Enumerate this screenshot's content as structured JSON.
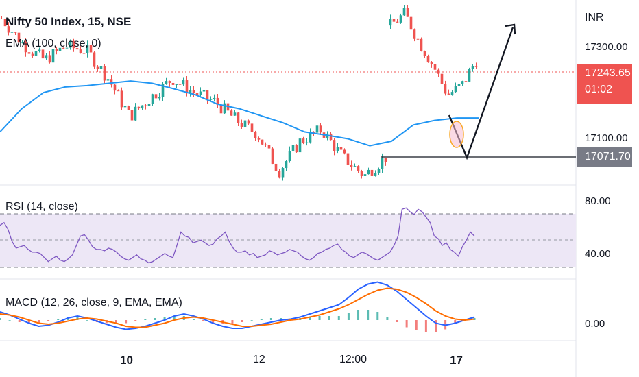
{
  "header": {
    "symbol": "Nifty 50 Index, 15, NSE",
    "ema_label": "EMA (100, close, 0)",
    "currency": "INR"
  },
  "colors": {
    "up": "#26a69a",
    "down": "#ef5350",
    "ema": "#2196f3",
    "rsi": "#7e57c2",
    "rsi_band": "#ede7f6",
    "macd": "#2962ff",
    "signal": "#ff6d00",
    "last_price_tag": "#ef5350",
    "level_tag": "#787b86"
  },
  "chart_data": [
    {
      "type": "candlestick",
      "title": "Nifty 50 Index, 15, NSE",
      "ylabel": "INR",
      "y_ticks": [
        "17300.00",
        "17100.00"
      ],
      "ylim": [
        17000,
        17400
      ],
      "last_price": "17243.65",
      "countdown": "01:02",
      "support_level": "17071.70",
      "x_ticks": [
        "10",
        "12",
        "12:00",
        "17"
      ],
      "ema": {
        "name": "EMA (100, close, 0)",
        "values": [
          17115,
          17165,
          17200,
          17212,
          17215,
          17220,
          17225,
          17220,
          17208,
          17195,
          17175,
          17165,
          17150,
          17135,
          17115,
          17108,
          17100,
          17085,
          17095,
          17130,
          17140,
          17145,
          17145
        ]
      },
      "close": [
        17360,
        17305,
        17270,
        17300,
        17290,
        17230,
        17148,
        17190,
        17230,
        17200,
        17180,
        17140,
        17110,
        17030,
        17095,
        17120,
        17060,
        17020,
        17060,
        17345,
        17370,
        17310,
        17258,
        17195,
        17215,
        17270
      ]
    },
    {
      "type": "line",
      "title": "RSI (14, close)",
      "y_ticks": [
        "80.00",
        "40.00"
      ],
      "ylim": [
        20,
        90
      ],
      "bands": [
        70,
        30
      ],
      "values": [
        60,
        62,
        57,
        48,
        43,
        44,
        45,
        42,
        40,
        40,
        39,
        36,
        33,
        35,
        37,
        34,
        33,
        35,
        38,
        45,
        52,
        53,
        49,
        44,
        42,
        42,
        41,
        43,
        42,
        40,
        37,
        35,
        34,
        36,
        38,
        35,
        34,
        32,
        33,
        35,
        37,
        39,
        37,
        36,
        45,
        55,
        52,
        51,
        47,
        48,
        49,
        47,
        45,
        46,
        50,
        52,
        55,
        48,
        43,
        40,
        40,
        41,
        38,
        39,
        36,
        37,
        38,
        41,
        40,
        38,
        39,
        40,
        42,
        41,
        40,
        37,
        35,
        34,
        36,
        39,
        40,
        42,
        43,
        45,
        46,
        42,
        40,
        37,
        36,
        38,
        40,
        39,
        37,
        35,
        34,
        36,
        38,
        40,
        45,
        52,
        72,
        73,
        70,
        68,
        72,
        70,
        66,
        62,
        52,
        50,
        45,
        47,
        42,
        40,
        37,
        44,
        49,
        55,
        52
      ]
    },
    {
      "type": "bar+line",
      "title": "MACD (12, 26, close, 9, EMA, EMA)",
      "y_ticks": [
        "0.00"
      ],
      "ylim": [
        -20,
        40
      ],
      "macd": [
        8,
        5,
        1,
        -3,
        -6,
        -5,
        -2,
        2,
        4,
        2,
        -1,
        -4,
        -7,
        -9,
        -8,
        -6,
        -3,
        0,
        4,
        6,
        4,
        1,
        -3,
        -6,
        -8,
        -8,
        -6,
        -4,
        -2,
        0,
        1,
        3,
        6,
        9,
        12,
        15,
        22,
        30,
        35,
        37,
        34,
        28,
        20,
        12,
        4,
        -3,
        -5,
        -3,
        0,
        3
      ],
      "signal": [
        6,
        5,
        3,
        0,
        -3,
        -4,
        -3,
        -1,
        1,
        2,
        1,
        -1,
        -3,
        -6,
        -7,
        -7,
        -5,
        -3,
        0,
        2,
        3,
        2,
        0,
        -2,
        -4,
        -6,
        -6,
        -5,
        -4,
        -2,
        0,
        1,
        3,
        5,
        8,
        11,
        15,
        20,
        25,
        29,
        31,
        30,
        27,
        22,
        16,
        9,
        4,
        1,
        0,
        1
      ],
      "histogram": [
        2,
        0,
        -2,
        -3,
        -3,
        -1,
        1,
        3,
        3,
        0,
        -2,
        -3,
        -4,
        -3,
        -1,
        1,
        2,
        3,
        4,
        4,
        1,
        -1,
        -3,
        -4,
        -4,
        -2,
        0,
        1,
        2,
        2,
        1,
        2,
        3,
        4,
        4,
        4,
        7,
        10,
        10,
        8,
        3,
        -2,
        -7,
        -10,
        -12,
        -12,
        -9,
        -4,
        0,
        2
      ]
    }
  ],
  "panes": {
    "rsi_label": "RSI (14, close)",
    "macd_label": "MACD (12, 26, close, 9, EMA, EMA)"
  }
}
